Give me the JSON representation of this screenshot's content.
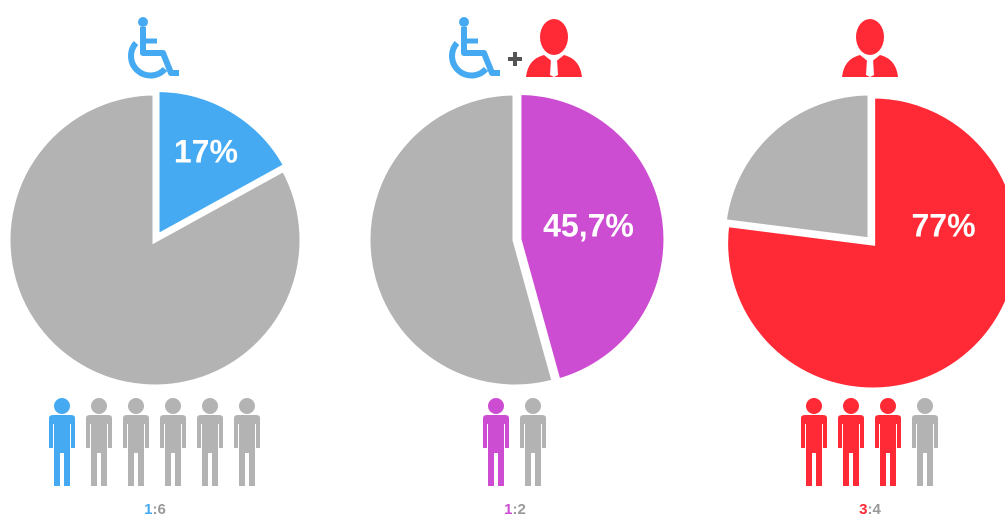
{
  "chart_data": [
    {
      "type": "pie",
      "values": [
        17,
        83
      ],
      "value_labels": [
        "17%",
        null
      ],
      "colors": [
        "#45aaf2",
        "#b3b3b3"
      ],
      "icons": [
        "wheelchair"
      ],
      "ratio": {
        "part": 1,
        "separator": ":",
        "whole": 6
      }
    },
    {
      "type": "pie",
      "values": [
        45.7,
        54.3
      ],
      "value_labels": [
        "45,7%",
        null
      ],
      "colors": [
        "#cc4dd1",
        "#b3b3b3"
      ],
      "icons": [
        "wheelchair",
        "plus",
        "manager"
      ],
      "ratio": {
        "part": 1,
        "separator": ":",
        "whole": 2
      }
    },
    {
      "type": "pie",
      "values": [
        77,
        23
      ],
      "value_labels": [
        "77%",
        null
      ],
      "colors": [
        "#ff2a35",
        "#b3b3b3"
      ],
      "icons": [
        "manager"
      ],
      "ratio": {
        "part": 3,
        "separator": ":",
        "whole": 4
      }
    }
  ]
}
